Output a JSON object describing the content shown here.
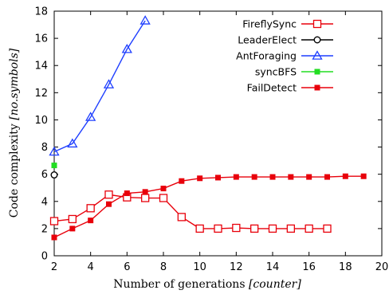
{
  "chart_data": {
    "type": "line",
    "xlabel_text": "Number of generations ",
    "xlabel_unit": "[counter]",
    "ylabel_text": "Code complexity ",
    "ylabel_unit": "[no.symbols]",
    "xlim": [
      2,
      20
    ],
    "ylim": [
      0,
      18
    ],
    "xticks": [
      "2",
      "4",
      "6",
      "8",
      "10",
      "12",
      "14",
      "16",
      "18",
      "20"
    ],
    "yticks": [
      "0",
      "2",
      "4",
      "6",
      "8",
      "10",
      "12",
      "14",
      "16",
      "18"
    ],
    "grid": false,
    "legend_position": "top-right",
    "series": [
      {
        "name": "FireflySync",
        "color": "#e8000b",
        "marker": "open-square",
        "x": [
          2,
          3,
          4,
          5,
          6,
          7,
          8,
          9,
          10,
          11,
          12,
          13,
          14,
          15,
          16,
          17
        ],
        "y": [
          2.55,
          2.7,
          3.5,
          4.5,
          4.3,
          4.25,
          4.25,
          2.85,
          2.0,
          2.0,
          2.05,
          2.0,
          2.0,
          2.0,
          2.0,
          2.0
        ]
      },
      {
        "name": "LeaderElect",
        "color": "#000000",
        "marker": "open-circle",
        "x": [
          2
        ],
        "y": [
          5.95
        ]
      },
      {
        "name": "AntForaging",
        "color": "#1f3fff",
        "marker": "open-triangle",
        "x": [
          2,
          3,
          4,
          5,
          6,
          7
        ],
        "y": [
          7.65,
          8.25,
          10.2,
          12.6,
          15.2,
          17.3
        ]
      },
      {
        "name": "syncBFS",
        "color": "#22dd22",
        "marker": "filled-square",
        "x": [
          2
        ],
        "y": [
          6.65
        ]
      },
      {
        "name": "FailDetect",
        "color": "#e8000b",
        "marker": "filled-square",
        "x": [
          2,
          3,
          4,
          5,
          6,
          7,
          8,
          9,
          10,
          11,
          12,
          13,
          14,
          15,
          16,
          17,
          18,
          19
        ],
        "y": [
          1.35,
          2.0,
          2.6,
          3.8,
          4.6,
          4.7,
          4.95,
          5.5,
          5.7,
          5.75,
          5.8,
          5.8,
          5.8,
          5.8,
          5.8,
          5.8,
          5.85,
          5.85
        ]
      }
    ]
  }
}
